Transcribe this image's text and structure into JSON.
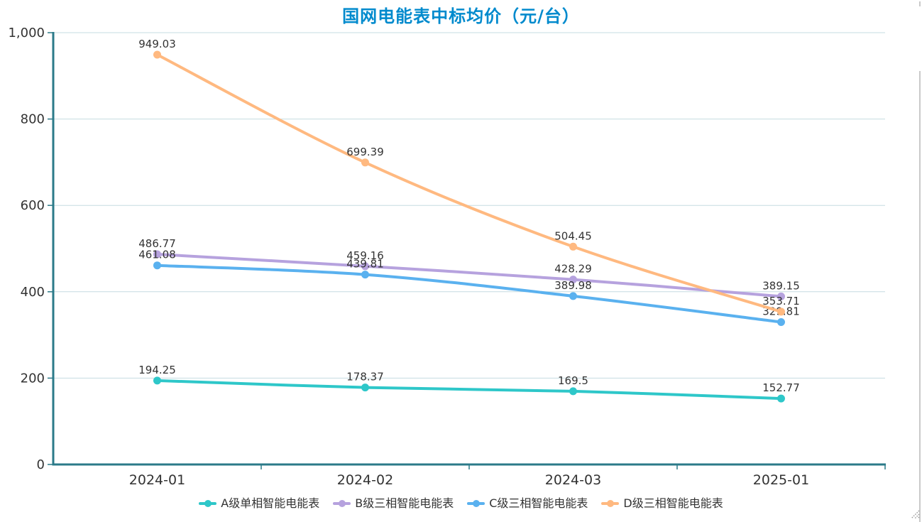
{
  "title": "国网电能表中标均价（元/台）",
  "chart_data": {
    "type": "line",
    "title": "国网电能表中标均价（元/台）",
    "categories": [
      "2024-01",
      "2024-02",
      "2024-03",
      "2025-01"
    ],
    "series": [
      {
        "name": "A级单相智能电能表",
        "color": "#2ec7c9",
        "values": [
          194.25,
          178.37,
          169.5,
          152.77
        ]
      },
      {
        "name": "B级三相智能电能表",
        "color": "#b6a2de",
        "values": [
          486.77,
          459.16,
          428.29,
          389.15
        ]
      },
      {
        "name": "C级三相智能电能表",
        "color": "#5ab1ef",
        "values": [
          461.08,
          439.81,
          389.98,
          329.81
        ]
      },
      {
        "name": "D级三相智能电能表",
        "color": "#ffb980",
        "values": [
          949.03,
          699.39,
          504.45,
          353.71
        ]
      }
    ],
    "ylim": [
      0,
      1000
    ],
    "yticks": [
      0,
      200,
      400,
      600,
      800,
      1000
    ],
    "ytick_labels": [
      "0",
      "200",
      "400",
      "600",
      "800",
      "1,000"
    ],
    "xlabel": "",
    "ylabel": "",
    "grid": "horizontal-only",
    "smooth": true,
    "data_labels": "above-points",
    "legend_position": "bottom"
  },
  "style": {
    "title_color": "#008acd",
    "axis_color": "#2b7a89",
    "grid_color": "#c5dce1",
    "tick_label_color": "#333333",
    "data_label_color": "#333333",
    "legend_text_color": "#333333",
    "background": "#ffffff",
    "scrollbar_color": "#c9c9c9",
    "resize_grip_color": "#9a9a9a"
  },
  "icons": {
    "legend_marker": "line-dot-marker-icon",
    "corner": "diagonal-resize-grip-icon"
  }
}
